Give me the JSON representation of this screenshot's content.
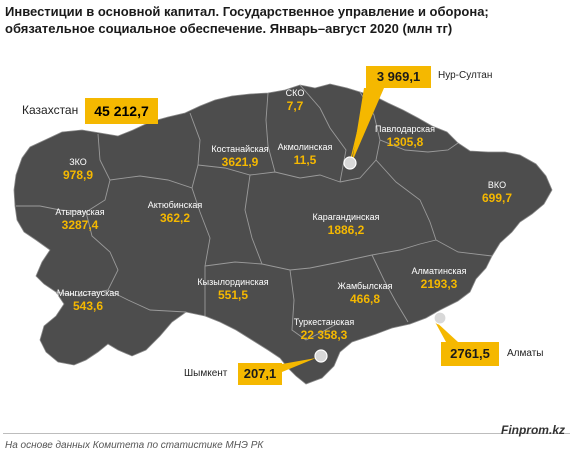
{
  "title_line1": "Инвестиции в основной капитал. Государственное управление и оборона;",
  "title_line2": "обязательное социальное обеспечение. Январь–август 2020 (млн тг)",
  "country": {
    "name": "Казахстан",
    "value": "45 212,7"
  },
  "regions": {
    "zko": {
      "name": "ЗКО",
      "value": "978,9"
    },
    "atyrau": {
      "name": "Атырауская",
      "value": "3287,4"
    },
    "mangystau": {
      "name": "Мангистауская",
      "value": "543,6"
    },
    "aktobe": {
      "name": "Актюбинская",
      "value": "362,2"
    },
    "kostanay": {
      "name": "Костанайская",
      "value": "3621,9"
    },
    "sko": {
      "name": "СКО",
      "value": "7,7"
    },
    "akmola": {
      "name": "Акмолинская",
      "value": "11,5"
    },
    "pavlodar": {
      "name": "Павлодарская",
      "value": "1305,8"
    },
    "vko": {
      "name": "ВКО",
      "value": "699,7"
    },
    "karaganda": {
      "name": "Карагандинская",
      "value": "1886,2"
    },
    "kyzylorda": {
      "name": "Кызылординская",
      "value": "551,5"
    },
    "zhambyl": {
      "name": "Жамбылская",
      "value": "466,8"
    },
    "almaty_region": {
      "name": "Алматинская",
      "value": "2193,3"
    },
    "turkestan": {
      "name": "Туркестанская",
      "value": "22 358,3"
    }
  },
  "cities": {
    "nur_sultan": {
      "name": "Нур-Султан",
      "value": "3 969,1"
    },
    "almaty": {
      "name": "Алматы",
      "value": "2761,5"
    },
    "shymkent": {
      "name": "Шымкент",
      "value": "207,1"
    }
  },
  "colors": {
    "map": "#4d4d4d",
    "accent": "#f5b800",
    "label": "#ffffff"
  },
  "source": "На основе данных Комитета по статистике МНЭ РК",
  "brand": "Finprom.kz"
}
